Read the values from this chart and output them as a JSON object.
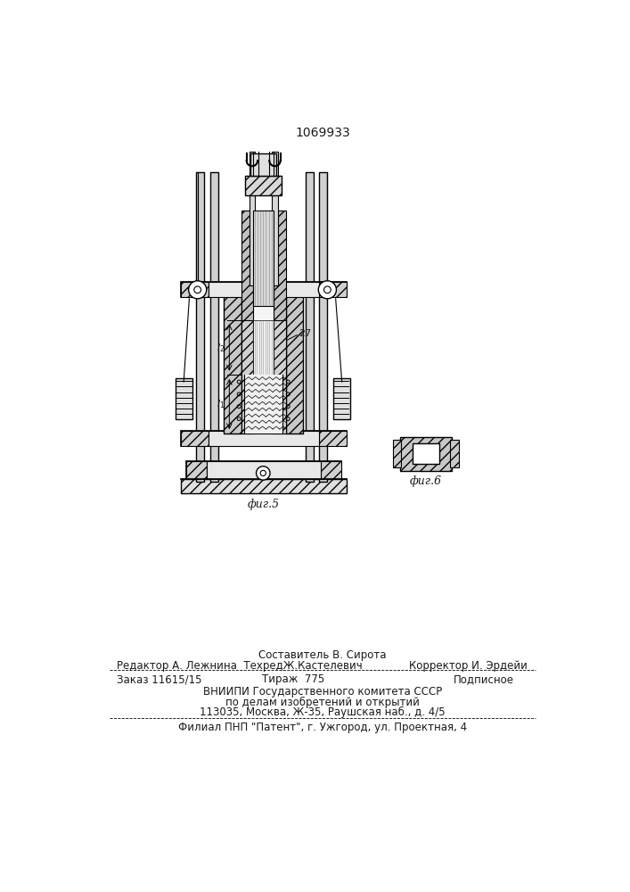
{
  "patent_number": "1069933",
  "background_color": "#ffffff",
  "text_color": "#1a1a1a",
  "footer": {
    "line0": "Составитель В. Сирота",
    "line1_left": "Редактор А. Лежнина  ТехредЖ.Кастелевич",
    "line1_right": "Корректор И. Эрдейи",
    "line2": "Заказ 11615/15          Тираж  775             Подписное",
    "line3": "ВНИИПИ Государственного комитета СССР",
    "line4": "по делам изобретений и открытий",
    "line5": "113035, Москва, Ж-35, Раушская наб., д. 4/5",
    "line6": "Филиал ПНП \"Патент\", г. Ужгород, ул. Проектная, 4"
  },
  "fig5_label": "фиг.5",
  "fig6_label": "фиг.6"
}
